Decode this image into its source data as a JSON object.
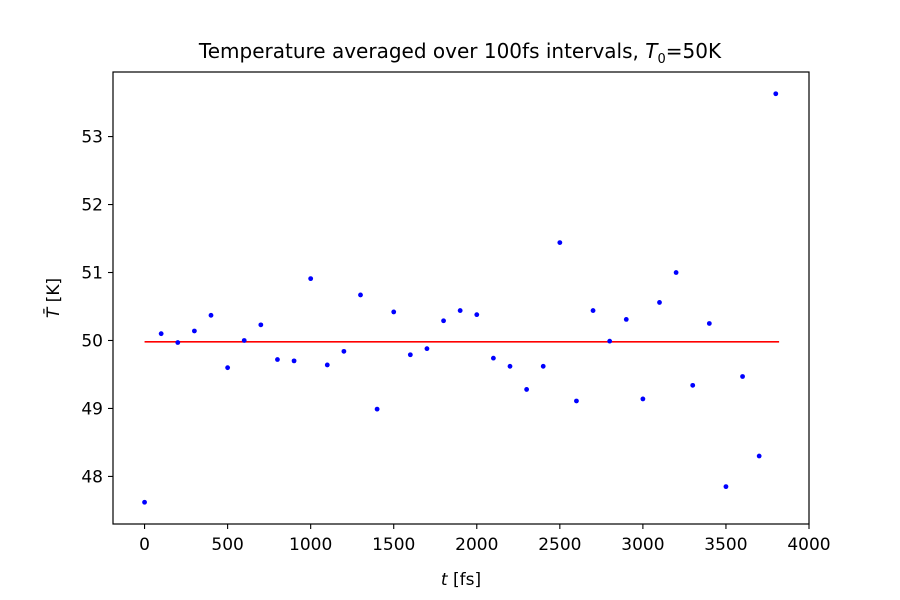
{
  "chart_data": {
    "type": "scatter",
    "title_main": "Temperature averaged over 100fs intervals, ",
    "title_var": "T",
    "title_sub": "0",
    "title_tail": "=50K",
    "xlabel_var": "t",
    "xlabel_unit": " [fs]",
    "ylabel_var": "T̄",
    "ylabel_unit": " [K]",
    "xlim": [
      -190,
      4000
    ],
    "ylim": [
      47.3,
      53.95
    ],
    "xticks": [
      0,
      500,
      1000,
      1500,
      2000,
      2500,
      3000,
      3500,
      4000
    ],
    "yticks": [
      48,
      49,
      50,
      51,
      52,
      53
    ],
    "grid": false,
    "point_color": "#0000ff",
    "line_color": "#ff0000",
    "reference_line": {
      "x": [
        0,
        3820
      ],
      "y": [
        49.98,
        49.98
      ]
    },
    "series": [
      {
        "x": [
          0,
          100,
          200,
          300,
          400,
          500,
          600,
          700,
          800,
          900,
          1000,
          1100,
          1200,
          1300,
          1400,
          1500,
          1600,
          1700,
          1800,
          1900,
          2000,
          2100,
          2200,
          2300,
          2400,
          2500,
          2600,
          2700,
          2800,
          2900,
          3000,
          3100,
          3200,
          3300,
          3400,
          3500,
          3600,
          3700,
          3800
        ],
        "y": [
          47.62,
          50.1,
          49.97,
          50.14,
          50.37,
          49.6,
          50.0,
          50.23,
          49.72,
          49.7,
          50.91,
          49.64,
          49.84,
          50.67,
          48.99,
          50.42,
          49.79,
          49.88,
          50.29,
          50.44,
          50.38,
          49.74,
          49.62,
          49.28,
          49.62,
          51.44,
          49.11,
          50.44,
          49.99,
          50.31,
          49.14,
          50.56,
          51.0,
          49.34,
          50.25,
          47.85,
          49.47,
          48.3,
          53.63
        ]
      }
    ]
  }
}
